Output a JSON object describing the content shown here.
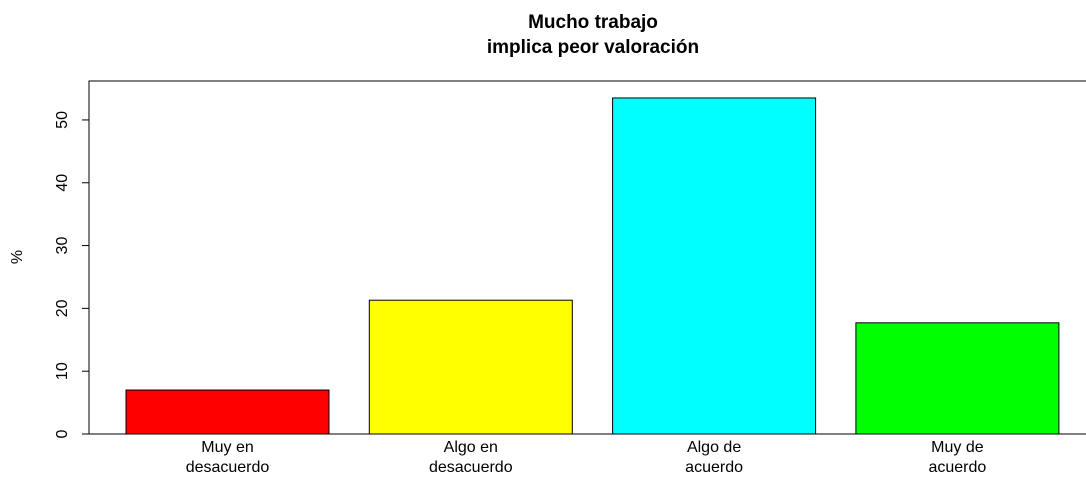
{
  "chart_data": {
    "type": "bar",
    "title": "Mucho trabajo\nimplica peor valoración",
    "ylabel": "%",
    "categories": [
      "Muy en\ndesacuerdo",
      "Algo en\ndesacuerdo",
      "Algo de\nacuerdo",
      "Muy de\nacuerdo"
    ],
    "values": [
      7.0,
      21.3,
      53.5,
      17.7
    ],
    "colors": [
      "#ff0000",
      "#ffff00",
      "#00ffff",
      "#00ff00"
    ],
    "ylim": [
      0,
      56.2
    ],
    "yticks": [
      0,
      10,
      20,
      30,
      40,
      50
    ]
  }
}
